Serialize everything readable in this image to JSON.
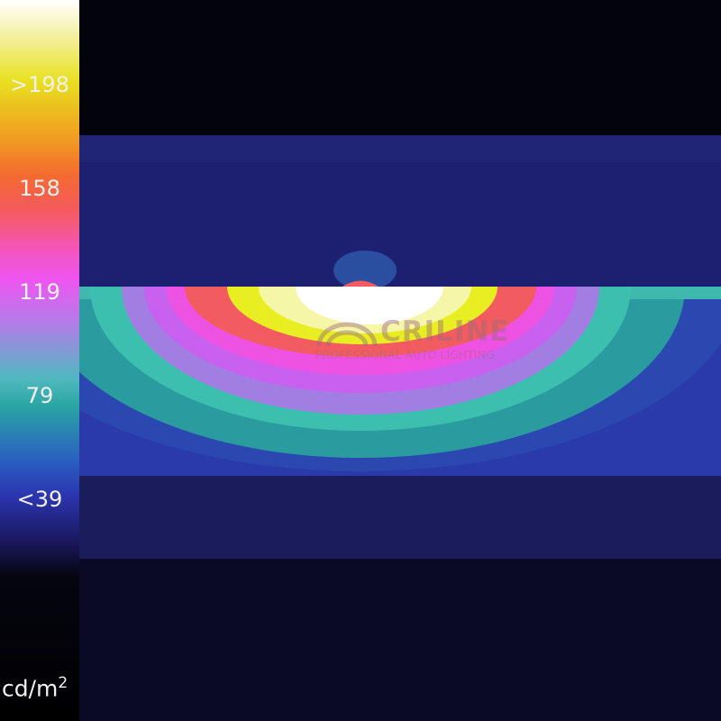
{
  "chart_data": {
    "type": "heatmap",
    "colorbar": {
      "ticks": [
        ">198",
        "158",
        "119",
        "79",
        "<39"
      ],
      "unit_base": "cd/m",
      "unit_exp": "2",
      "colors": [
        "#ffffff",
        "#e8e020",
        "#f36a30",
        "#ee55f0",
        "#2aa6a4",
        "#2b35b0",
        "#000000"
      ]
    }
  },
  "watermark": {
    "brand": "CRILINE",
    "tagline": "PROFESSIONAL AUTO LIGHTING"
  }
}
